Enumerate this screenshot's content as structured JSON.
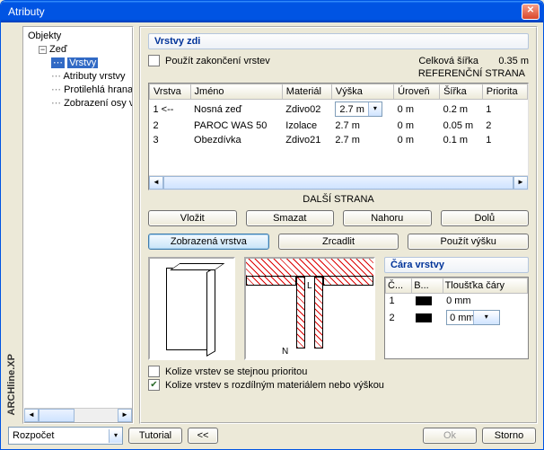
{
  "window": {
    "title": "Atributy"
  },
  "tree": {
    "root": "Objekty",
    "node": "Zeď",
    "items": [
      "Vrstvy",
      "Atributy vrstvy",
      "Protilehlá hrana",
      "Zobrazení osy vrst"
    ],
    "selected_index": 0
  },
  "section": {
    "title": "Vrstvy zdi",
    "checkbox_label": "Použít zakončení vrstev",
    "total_width_label": "Celková šířka",
    "total_width_value": "0.35 m",
    "ref_side": "REFERENČNÍ STRANA",
    "other_side": "DALŠÍ STRANA"
  },
  "table": {
    "columns": [
      "Vrstva",
      "Jméno",
      "Materiál",
      "Výška",
      "Úroveň",
      "Šířka",
      "Priorita"
    ],
    "rows": [
      {
        "n": "1 <--",
        "name": "Nosná zeď",
        "mat": "Zdivo02",
        "h": "2.7 m",
        "h_combo": true,
        "lvl": "0 m",
        "w": "0.2 m",
        "p": "1"
      },
      {
        "n": "2",
        "name": "PAROC WAS 50",
        "mat": "Izolace",
        "h": "2.7 m",
        "h_combo": false,
        "lvl": "0 m",
        "w": "0.05 m",
        "p": "2"
      },
      {
        "n": "3",
        "name": "Obezdívka",
        "mat": "Zdivo21",
        "h": "2.7 m",
        "h_combo": false,
        "lvl": "0 m",
        "w": "0.1 m",
        "p": "1"
      }
    ]
  },
  "buttons": {
    "insert": "Vložit",
    "delete": "Smazat",
    "up": "Nahoru",
    "down": "Dolů",
    "shown_layer": "Zobrazená vrstva",
    "mirror": "Zrcadlit",
    "use_height": "Použít výšku"
  },
  "lines": {
    "title": "Čára vrstvy",
    "columns": [
      "Č...",
      "B...",
      "Tloušťka čáry"
    ],
    "rows": [
      {
        "n": "1",
        "val": "0 mm",
        "combo": false
      },
      {
        "n": "2",
        "val": "0 mm",
        "combo": true
      }
    ]
  },
  "checks": {
    "same_priority": "Kolize vrstev se stejnou prioritou",
    "diff_material": "Kolize vrstev s rozdílným materiálem nebo výškou",
    "same_checked": false,
    "diff_checked": true
  },
  "footer": {
    "select_value": "Rozpočet",
    "tutorial": "Tutorial",
    "back": "<<",
    "ok": "Ok",
    "cancel": "Storno"
  },
  "brand": "ARCHline.XP"
}
